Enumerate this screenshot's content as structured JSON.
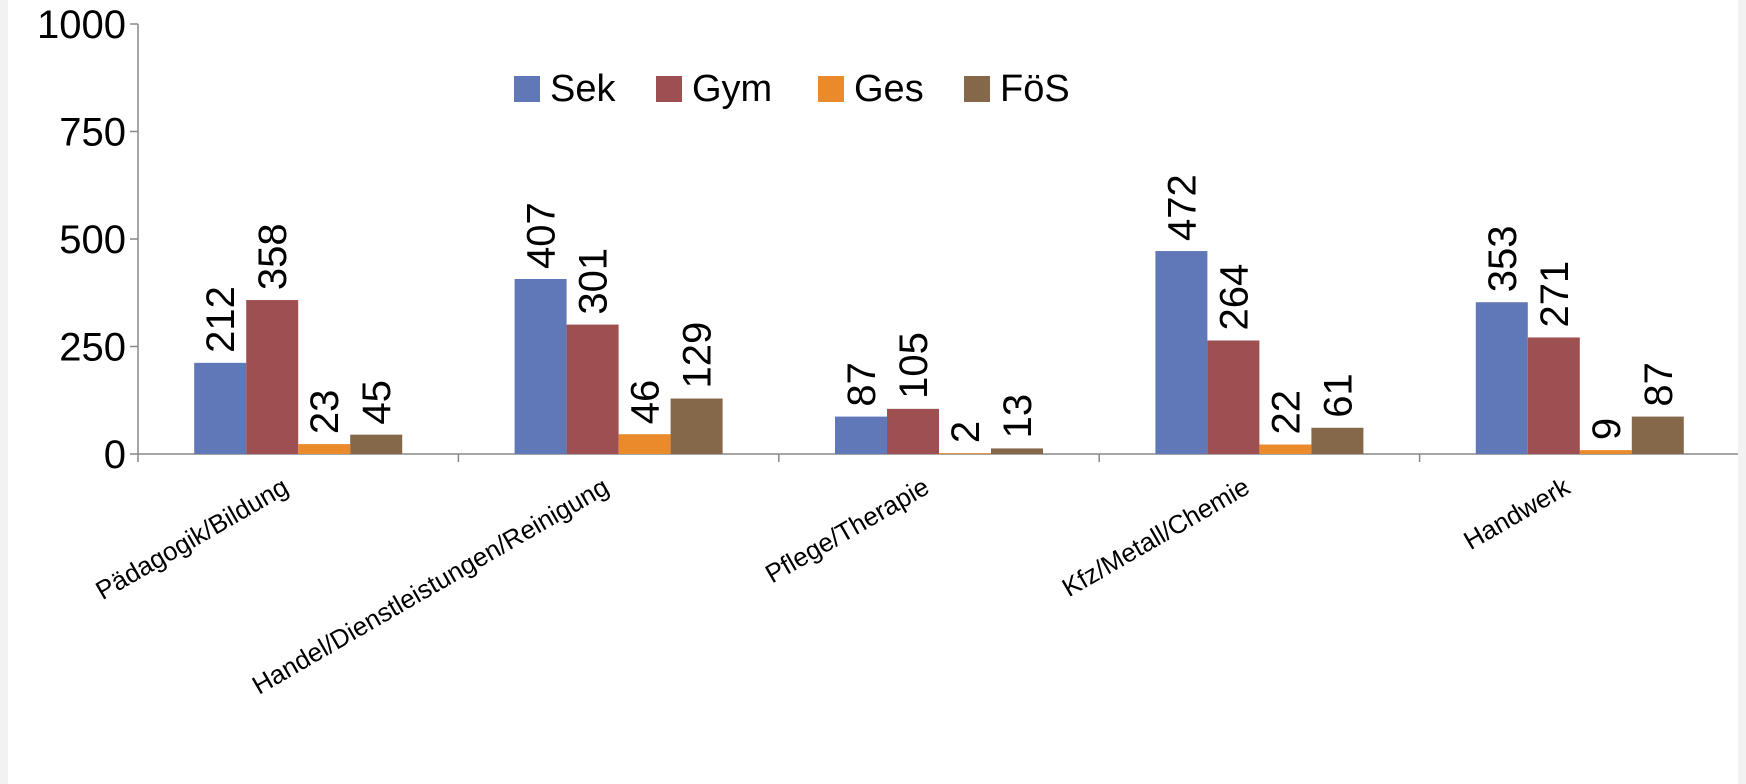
{
  "chart_data": {
    "type": "bar",
    "title": "",
    "xlabel": "",
    "ylabel": "",
    "ylim": [
      0,
      1000
    ],
    "yticks": [
      0,
      250,
      500,
      750,
      1000
    ],
    "grid": false,
    "legend_position": "top-center",
    "categories": [
      "Pädagogik/Bildung",
      "Handel/Dienstleistungen/Reinigung",
      "Pflege/Therapie",
      "Kfz/Metall/Chemie",
      "Handwerk"
    ],
    "series": [
      {
        "name": "Sek",
        "color": "#6078b8",
        "values": [
          212,
          407,
          87,
          472,
          353
        ]
      },
      {
        "name": "Gym",
        "color": "#9e4f51",
        "values": [
          358,
          301,
          105,
          264,
          271
        ]
      },
      {
        "name": "Ges",
        "color": "#ea8a2a",
        "values": [
          23,
          46,
          2,
          22,
          9
        ]
      },
      {
        "name": "FöS",
        "color": "#85684a",
        "values": [
          45,
          129,
          13,
          61,
          87
        ]
      }
    ]
  }
}
